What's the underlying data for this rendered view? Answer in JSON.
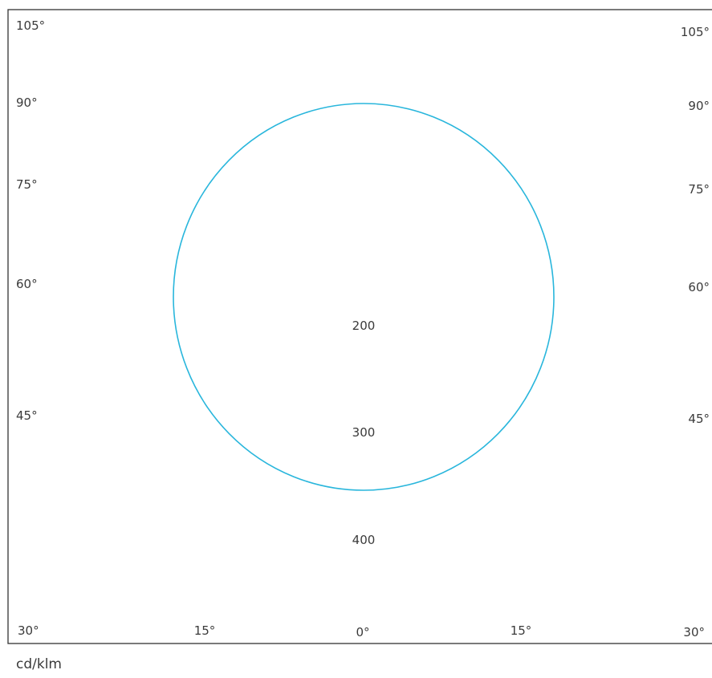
{
  "chart_data": {
    "type": "polar",
    "title": "",
    "unit_label": "cd/klm",
    "left_angle_labels": [
      "105°",
      "90°",
      "75°",
      "60°",
      "45°",
      "30°"
    ],
    "right_angle_labels": [
      "105°",
      "90°",
      "75°",
      "60°",
      "45°",
      "30°"
    ],
    "bottom_angle_labels": [
      "15°",
      "0°",
      "15°"
    ],
    "radial_tick_labels": [
      "200",
      "300",
      "400"
    ],
    "series": [
      {
        "color": "#29b6dc",
        "shape": "circle"
      }
    ],
    "grid": false,
    "legend": "none"
  }
}
